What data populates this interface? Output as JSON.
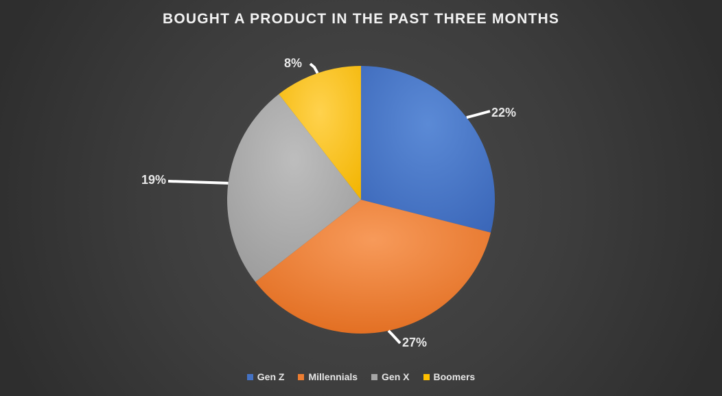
{
  "chart_data": {
    "type": "pie",
    "title": "BOUGHT A PRODUCT IN THE PAST THREE MONTHS",
    "categories": [
      "Gen Z",
      "Millennials",
      "Gen X",
      "Boomers"
    ],
    "values": [
      22,
      27,
      19,
      8
    ],
    "labels": [
      "22%",
      "27%",
      "19%",
      "8%"
    ],
    "colors": [
      "#4472c4",
      "#ed7d31",
      "#a5a5a5",
      "#ffc000"
    ],
    "start_angle": "12 o'clock",
    "direction": "clockwise",
    "legend_position": "bottom"
  }
}
